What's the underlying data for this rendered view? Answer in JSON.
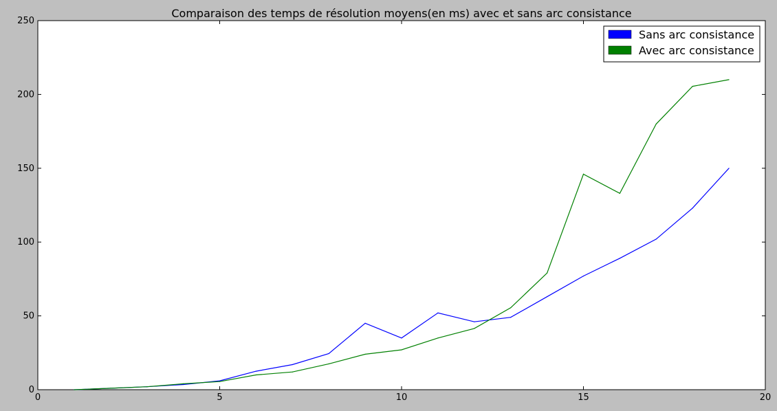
{
  "chart_data": {
    "type": "line",
    "title": "Comparaison des temps de résolution moyens(en ms) avec et sans arc consistance",
    "xlabel": "",
    "ylabel": "",
    "xlim": [
      0,
      20
    ],
    "ylim": [
      0,
      250
    ],
    "x_ticks": [
      "0",
      "5",
      "10",
      "15",
      "20"
    ],
    "y_ticks": [
      "0",
      "50",
      "100",
      "150",
      "200",
      "250"
    ],
    "legend_position": "top-right",
    "grid": false,
    "x": [
      1,
      2,
      3,
      4,
      5,
      6,
      7,
      8,
      9,
      10,
      11,
      12,
      13,
      14,
      15,
      16,
      17,
      18,
      19
    ],
    "series": [
      {
        "name": "Sans arc consistance",
        "color": "#0000ff",
        "values": [
          0,
          1,
          2,
          3.5,
          6,
          12.5,
          17,
          24.5,
          45,
          35,
          52,
          46,
          49,
          63,
          77,
          89,
          102,
          123,
          150
        ]
      },
      {
        "name": "Avec arc consistance",
        "color": "#008000",
        "values": [
          0,
          1,
          2,
          4,
          5.5,
          10,
          12,
          17.5,
          24,
          27,
          35,
          41.5,
          55.5,
          79,
          146,
          133,
          180,
          205.5,
          210
        ]
      }
    ]
  }
}
